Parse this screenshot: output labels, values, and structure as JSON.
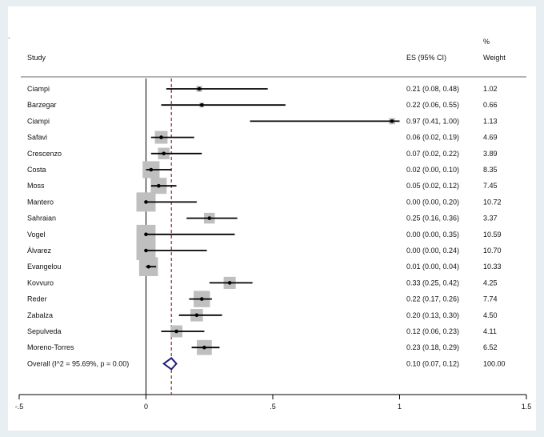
{
  "dot_mark": ".",
  "chart_data": {
    "type": "forest",
    "header": {
      "study": "Study",
      "es": "ES (95% CI)",
      "weight_top": "%",
      "weight": "Weight"
    },
    "rows": [
      {
        "study": "Ciampi",
        "es": 0.21,
        "lo": 0.08,
        "hi": 0.48,
        "es_text": "0.21 (0.08, 0.48)",
        "weight": 1.02,
        "weight_text": "1.02"
      },
      {
        "study": "Barzegar",
        "es": 0.22,
        "lo": 0.06,
        "hi": 0.55,
        "es_text": "0.22 (0.06, 0.55)",
        "weight": 0.66,
        "weight_text": "0.66"
      },
      {
        "study": "Ciampi",
        "es": 0.97,
        "lo": 0.41,
        "hi": 1.0,
        "es_text": "0.97 (0.41, 1.00)",
        "weight": 1.13,
        "weight_text": "1.13"
      },
      {
        "study": "Safavi",
        "es": 0.06,
        "lo": 0.02,
        "hi": 0.19,
        "es_text": "0.06 (0.02, 0.19)",
        "weight": 4.69,
        "weight_text": "4.69"
      },
      {
        "study": "Crescenzo",
        "es": 0.07,
        "lo": 0.02,
        "hi": 0.22,
        "es_text": "0.07 (0.02, 0.22)",
        "weight": 3.89,
        "weight_text": "3.89"
      },
      {
        "study": "Costa",
        "es": 0.02,
        "lo": 0.0,
        "hi": 0.1,
        "es_text": "0.02 (0.00, 0.10)",
        "weight": 8.35,
        "weight_text": "8.35"
      },
      {
        "study": "Moss",
        "es": 0.05,
        "lo": 0.02,
        "hi": 0.12,
        "es_text": "0.05 (0.02, 0.12)",
        "weight": 7.45,
        "weight_text": "7.45"
      },
      {
        "study": "Mantero",
        "es": 0.0,
        "lo": 0.0,
        "hi": 0.2,
        "es_text": "0.00 (0.00, 0.20)",
        "weight": 10.72,
        "weight_text": "10.72"
      },
      {
        "study": "Sahraian",
        "es": 0.25,
        "lo": 0.16,
        "hi": 0.36,
        "es_text": "0.25 (0.16, 0.36)",
        "weight": 3.37,
        "weight_text": "3.37"
      },
      {
        "study": "Vogel",
        "es": 0.0,
        "lo": 0.0,
        "hi": 0.35,
        "es_text": "0.00 (0.00, 0.35)",
        "weight": 10.59,
        "weight_text": "10.59"
      },
      {
        "study": "Álvarez",
        "es": 0.0,
        "lo": 0.0,
        "hi": 0.24,
        "es_text": "0.00 (0.00, 0.24)",
        "weight": 10.7,
        "weight_text": "10.70"
      },
      {
        "study": "Evangelou",
        "es": 0.01,
        "lo": 0.0,
        "hi": 0.04,
        "es_text": "0.01 (0.00, 0.04)",
        "weight": 10.33,
        "weight_text": "10.33"
      },
      {
        "study": "Kovvuro",
        "es": 0.33,
        "lo": 0.25,
        "hi": 0.42,
        "es_text": "0.33 (0.25, 0.42)",
        "weight": 4.25,
        "weight_text": "4.25"
      },
      {
        "study": "Reder",
        "es": 0.22,
        "lo": 0.17,
        "hi": 0.26,
        "es_text": "0.22 (0.17, 0.26)",
        "weight": 7.74,
        "weight_text": "7.74"
      },
      {
        "study": "Zabalza",
        "es": 0.2,
        "lo": 0.13,
        "hi": 0.3,
        "es_text": "0.20 (0.13, 0.30)",
        "weight": 4.5,
        "weight_text": "4.50"
      },
      {
        "study": "Sepulveda",
        "es": 0.12,
        "lo": 0.06,
        "hi": 0.23,
        "es_text": "0.12 (0.06, 0.23)",
        "weight": 4.11,
        "weight_text": "4.11"
      },
      {
        "study": "Moreno-Torres",
        "es": 0.23,
        "lo": 0.18,
        "hi": 0.29,
        "es_text": "0.23 (0.18, 0.29)",
        "weight": 6.52,
        "weight_text": "6.52"
      }
    ],
    "overall": {
      "label": "Overall  (I^2 = 95.69%, p = 0.00)",
      "es": 0.1,
      "lo": 0.07,
      "hi": 0.12,
      "es_text": "0.10 (0.07, 0.12)",
      "weight_text": "100.00"
    },
    "x_axis": {
      "range": [
        -0.5,
        1.5
      ],
      "ticks": [
        -0.5,
        0,
        0.5,
        1,
        1.5
      ],
      "tick_labels": [
        "-.5",
        "0",
        ".5",
        "1",
        "1.5"
      ]
    },
    "null_line": 0,
    "colors": {
      "box": "#bfbfbf",
      "line": "#000000",
      "overall_line": "#8b1a1a",
      "diamond": "#1f1f7a"
    }
  }
}
